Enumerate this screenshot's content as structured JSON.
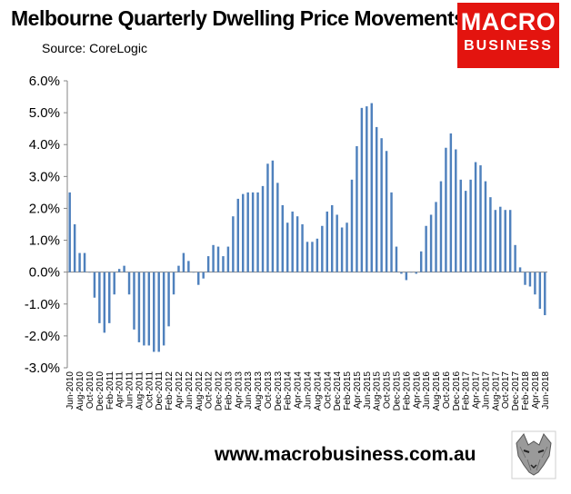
{
  "title": "Melbourne Quarterly Dwelling Price Movements",
  "source": "Source: CoreLogic",
  "logo": {
    "line1": "MACRO",
    "line2": "BUSINESS",
    "color": "#e3140f"
  },
  "footer_url": "www.macrobusiness.com.au",
  "chart_data": {
    "type": "bar",
    "bar_color": "#4f81bd",
    "ylim": [
      -3,
      6
    ],
    "yticks": [
      "-3.0%",
      "-2.0%",
      "-1.0%",
      "0.0%",
      "1.0%",
      "2.0%",
      "3.0%",
      "4.0%",
      "5.0%",
      "6.0%"
    ],
    "x_tick_labels": [
      "Jun-2010",
      "Aug-2010",
      "Oct-2010",
      "Dec-2010",
      "Feb-2011",
      "Apr-2011",
      "Jun-2011",
      "Aug-2011",
      "Oct-2011",
      "Dec-2011",
      "Feb-2012",
      "Apr-2012",
      "Jun-2012",
      "Aug-2012",
      "Oct-2012",
      "Dec-2012",
      "Feb-2013",
      "Apr-2013",
      "Jun-2013",
      "Aug-2013",
      "Oct-2013",
      "Dec-2013",
      "Feb-2014",
      "Apr-2014",
      "Jun-2014",
      "Aug-2014",
      "Oct-2014",
      "Dec-2014",
      "Feb-2015",
      "Apr-2015",
      "Jun-2015",
      "Aug-2015",
      "Oct-2015",
      "Dec-2015",
      "Feb-2016",
      "Apr-2016",
      "Jun-2016",
      "Aug-2016",
      "Oct-2016",
      "Dec-2016",
      "Feb-2017",
      "Apr-2017",
      "Jun-2017",
      "Aug-2017",
      "Oct-2017",
      "Dec-2017",
      "Feb-2018",
      "Apr-2018",
      "Jun-2018"
    ],
    "x_start": "Jun-2010",
    "x_end": "Jun-2018",
    "series": [
      {
        "values": [
          2.5,
          1.5,
          0.6,
          0.6,
          0,
          -0.8,
          -1.6,
          -1.9,
          -1.6,
          -0.7,
          0.1,
          0.2,
          -0.7,
          -1.8,
          -2.2,
          -2.3,
          -2.3,
          -2.5,
          -2.5,
          -2.3,
          -1.7,
          -0.7,
          0.2,
          0.6,
          0.35,
          0,
          -0.4,
          -0.2,
          0.5,
          0.85,
          0.8,
          0.5,
          0.8,
          1.75,
          2.3,
          2.45,
          2.5,
          2.5,
          2.5,
          2.7,
          3.4,
          3.5,
          2.8,
          2.1,
          1.55,
          1.9,
          1.75,
          1.5,
          0.95,
          0.95,
          1.05,
          1.45,
          1.9,
          2.1,
          1.8,
          1.4,
          1.55,
          2.9,
          3.95,
          5.15,
          5.2,
          5.3,
          4.55,
          4.2,
          3.8,
          2.5,
          0.8,
          -0.05,
          -0.25,
          0,
          -0.05,
          0.65,
          1.45,
          1.8,
          2.2,
          2.85,
          3.9,
          4.35,
          3.85,
          2.9,
          2.55,
          2.9,
          3.45,
          3.35,
          2.85,
          2.35,
          1.95,
          2.05,
          1.95,
          1.95,
          0.85,
          0.15,
          -0.4,
          -0.45,
          -0.7,
          -1.15,
          -1.35
        ]
      }
    ]
  }
}
